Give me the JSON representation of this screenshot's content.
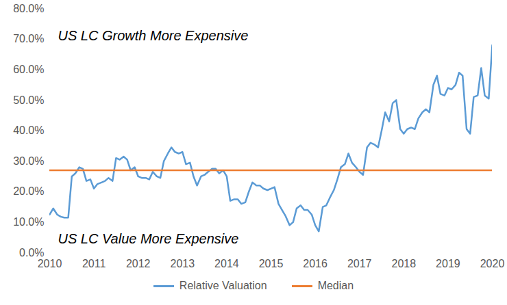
{
  "chart_data": {
    "type": "line",
    "annotations": [
      "US LC Growth More Expensive",
      "US LC Value More Expensive"
    ],
    "x": [
      2010,
      2010.08,
      2010.17,
      2010.25,
      2010.33,
      2010.42,
      2010.5,
      2010.58,
      2010.67,
      2010.75,
      2010.83,
      2010.92,
      2011,
      2011.08,
      2011.17,
      2011.25,
      2011.33,
      2011.42,
      2011.5,
      2011.58,
      2011.67,
      2011.75,
      2011.83,
      2011.92,
      2012,
      2012.08,
      2012.17,
      2012.25,
      2012.33,
      2012.42,
      2012.5,
      2012.58,
      2012.67,
      2012.75,
      2012.83,
      2012.92,
      2013,
      2013.08,
      2013.17,
      2013.25,
      2013.33,
      2013.42,
      2013.5,
      2013.58,
      2013.67,
      2013.75,
      2013.83,
      2013.92,
      2014,
      2014.08,
      2014.17,
      2014.25,
      2014.33,
      2014.42,
      2014.5,
      2014.58,
      2014.67,
      2014.75,
      2014.83,
      2014.92,
      2015,
      2015.08,
      2015.17,
      2015.25,
      2015.33,
      2015.42,
      2015.5,
      2015.58,
      2015.67,
      2015.75,
      2015.83,
      2015.92,
      2016,
      2016.08,
      2016.17,
      2016.25,
      2016.33,
      2016.42,
      2016.5,
      2016.58,
      2016.67,
      2016.75,
      2016.83,
      2016.92,
      2017,
      2017.08,
      2017.17,
      2017.25,
      2017.33,
      2017.42,
      2017.5,
      2017.58,
      2017.67,
      2017.75,
      2017.83,
      2017.92,
      2018,
      2018.08,
      2018.17,
      2018.25,
      2018.33,
      2018.42,
      2018.5,
      2018.58,
      2018.67,
      2018.75,
      2018.83,
      2018.92,
      2019,
      2019.08,
      2019.17,
      2019.25,
      2019.33,
      2019.42,
      2019.5,
      2019.58,
      2019.67,
      2019.75,
      2019.83,
      2019.92,
      2020
    ],
    "series": [
      {
        "name": "Relative Valuation",
        "color": "#5b9bd5",
        "values": [
          12.5,
          14.5,
          12.5,
          11.8,
          11.5,
          11.5,
          25,
          26,
          28,
          27.5,
          23.5,
          24,
          21,
          22.5,
          23,
          23.5,
          24.5,
          23.5,
          31,
          30.5,
          31.5,
          30.5,
          27,
          28,
          25,
          24.5,
          24.5,
          24,
          26.5,
          25,
          24.5,
          30,
          32.5,
          34.5,
          33,
          32.5,
          33,
          29,
          29.5,
          25,
          22,
          25,
          25.5,
          26.5,
          27.5,
          27.5,
          26,
          27,
          25,
          17,
          17.5,
          17.5,
          16,
          16.5,
          20,
          23,
          22,
          22,
          21,
          20.5,
          21,
          21.5,
          16,
          14,
          12,
          9,
          10,
          14.5,
          15.5,
          14,
          14,
          12.5,
          9,
          7,
          15,
          15.5,
          18,
          20.5,
          24,
          28,
          29,
          32.5,
          29.5,
          28,
          26.5,
          25.5,
          34.5,
          36,
          35.5,
          34.5,
          40,
          46,
          43,
          49,
          50,
          40.5,
          39,
          40.5,
          41,
          40.5,
          44,
          46,
          47,
          46,
          55,
          58,
          52,
          51.5,
          54,
          53.5,
          55,
          59,
          58,
          40.5,
          39,
          51,
          51.5,
          60.5,
          51.5,
          50.5,
          68
        ]
      },
      {
        "name": "Median",
        "color": "#ed7d31",
        "values": [
          27,
          27,
          27,
          27,
          27,
          27,
          27,
          27,
          27,
          27,
          27,
          27,
          27,
          27,
          27,
          27,
          27,
          27,
          27,
          27,
          27,
          27,
          27,
          27,
          27,
          27,
          27,
          27,
          27,
          27,
          27,
          27,
          27,
          27,
          27,
          27,
          27,
          27,
          27,
          27,
          27,
          27,
          27,
          27,
          27,
          27,
          27,
          27,
          27,
          27,
          27,
          27,
          27,
          27,
          27,
          27,
          27,
          27,
          27,
          27,
          27,
          27,
          27,
          27,
          27,
          27,
          27,
          27,
          27,
          27,
          27,
          27,
          27,
          27,
          27,
          27,
          27,
          27,
          27,
          27,
          27,
          27,
          27,
          27,
          27,
          27,
          27,
          27,
          27,
          27,
          27,
          27,
          27,
          27,
          27,
          27,
          27,
          27,
          27,
          27,
          27,
          27,
          27,
          27,
          27,
          27,
          27,
          27,
          27,
          27,
          27,
          27,
          27,
          27,
          27,
          27,
          27,
          27,
          27,
          27,
          27
        ]
      }
    ],
    "xlim": [
      2010,
      2020
    ],
    "xticks": [
      2010,
      2011,
      2012,
      2013,
      2014,
      2015,
      2016,
      2017,
      2018,
      2019,
      2020
    ],
    "ylim": [
      0,
      80
    ],
    "yticks": [
      {
        "value": 0,
        "label": "0.0%"
      },
      {
        "value": 10,
        "label": "10.0%"
      },
      {
        "value": 20,
        "label": "20.0%"
      },
      {
        "value": 30,
        "label": "30.0%"
      },
      {
        "value": 40,
        "label": "40.0%"
      },
      {
        "value": 50,
        "label": "50.0%"
      },
      {
        "value": 60,
        "label": "60.0%"
      },
      {
        "value": 70,
        "label": "70.0%"
      },
      {
        "value": 80,
        "label": "80.0%"
      }
    ],
    "grid": false,
    "legend": "bottom"
  }
}
